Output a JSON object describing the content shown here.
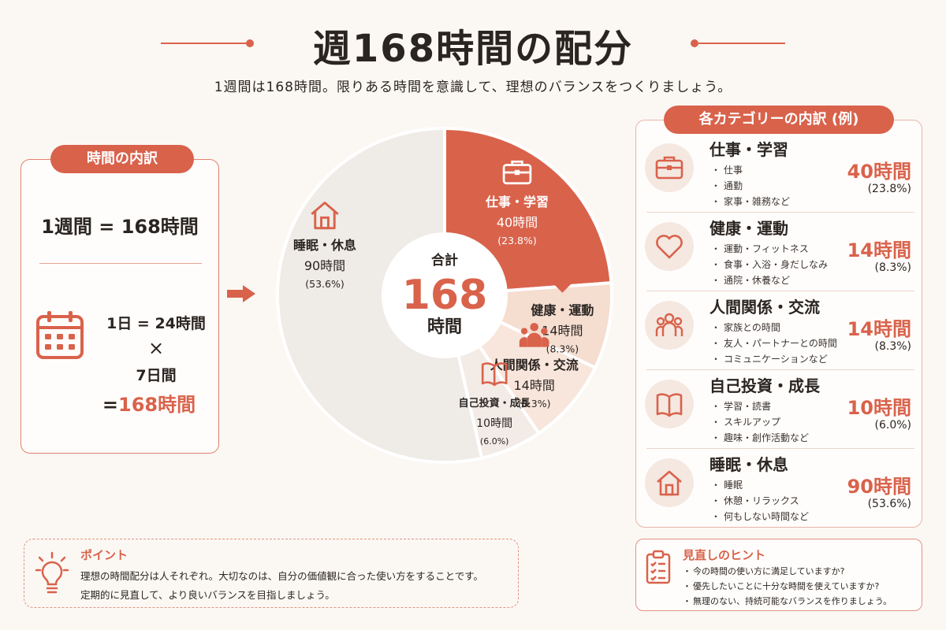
{
  "header": {
    "title": "週168時間の配分",
    "subtitle": "1週間は168時間。限りある時間を意識して、理想のバランスをつくりましょう。"
  },
  "left_panel": {
    "badge": "時間の内訳",
    "week_equation": "1週間 = 168時間",
    "day_equation": "1日 = 24時間",
    "times": "×",
    "days": "7日間",
    "result_prefix": "=",
    "result_value": "168時間"
  },
  "center": {
    "total_label": "合計",
    "total_value": "168",
    "total_unit": "時間"
  },
  "colors": {
    "accent": "#d9624b",
    "work": "#d9624b",
    "health": "#f5ddd0",
    "relations": "#f8e6dc",
    "growth": "#f2ebe6",
    "sleep": "#efebe6"
  },
  "chart_data": {
    "type": "pie",
    "total": 168,
    "slices": [
      {
        "label": "仕事・学習",
        "hours": 40,
        "hours_text": "40時間",
        "percent_text": "(23.8%)",
        "icon": "briefcase-icon",
        "color": "#d9624b"
      },
      {
        "label": "健康・運動",
        "hours": 14,
        "hours_text": "14時間",
        "percent_text": "(8.3%)",
        "icon": "heart-icon",
        "color": "#f5ddd0"
      },
      {
        "label": "人間関係・交流",
        "hours": 14,
        "hours_text": "14時間",
        "percent_text": "(8.3%)",
        "icon": "people-icon",
        "color": "#f8e6dc"
      },
      {
        "label": "自己投資・成長",
        "hours": 10,
        "hours_text": "10時間",
        "percent_text": "(6.0%)",
        "icon": "book-icon",
        "color": "#f2ebe6"
      },
      {
        "label": "睡眠・休息",
        "hours": 90,
        "hours_text": "90時間",
        "percent_text": "(53.6%)",
        "icon": "house-icon",
        "color": "#efebe6"
      }
    ]
  },
  "right_panel": {
    "badge": "各カテゴリーの内訳 (例)",
    "categories": [
      {
        "title": "仕事・学習",
        "items": [
          "仕事",
          "通勤",
          "家事・雑務など"
        ],
        "hours": "40時間",
        "percent": "(23.8%)",
        "icon": "briefcase-icon"
      },
      {
        "title": "健康・運動",
        "items": [
          "運動・フィットネス",
          "食事・入浴・身だしなみ",
          "通院・休養など"
        ],
        "hours": "14時間",
        "percent": "(8.3%)",
        "icon": "heart-icon"
      },
      {
        "title": "人間関係・交流",
        "items": [
          "家族との時間",
          "友人・パートナーとの時間",
          "コミュニケーションなど"
        ],
        "hours": "14時間",
        "percent": "(8.3%)",
        "icon": "people-icon"
      },
      {
        "title": "自己投資・成長",
        "items": [
          "学習・読書",
          "スキルアップ",
          "趣味・創作活動など"
        ],
        "hours": "10時間",
        "percent": "(6.0%)",
        "icon": "book-icon"
      },
      {
        "title": "睡眠・休息",
        "items": [
          "睡眠",
          "休憩・リラックス",
          "何もしない時間など"
        ],
        "hours": "90時間",
        "percent": "(53.6%)",
        "icon": "house-icon"
      }
    ]
  },
  "point": {
    "title": "ポイント",
    "line1": "理想の時間配分は人それぞれ。大切なのは、自分の価値観に合った使い方をすることです。",
    "line2": "定期的に見直して、より良いバランスを目指しましょう。"
  },
  "hints": {
    "title": "見直しのヒント",
    "items": [
      "今の時間の使い方に満足していますか?",
      "優先したいことに十分な時間を使えていますか?",
      "無理のない、持続可能なバランスを作りましょう。"
    ]
  }
}
